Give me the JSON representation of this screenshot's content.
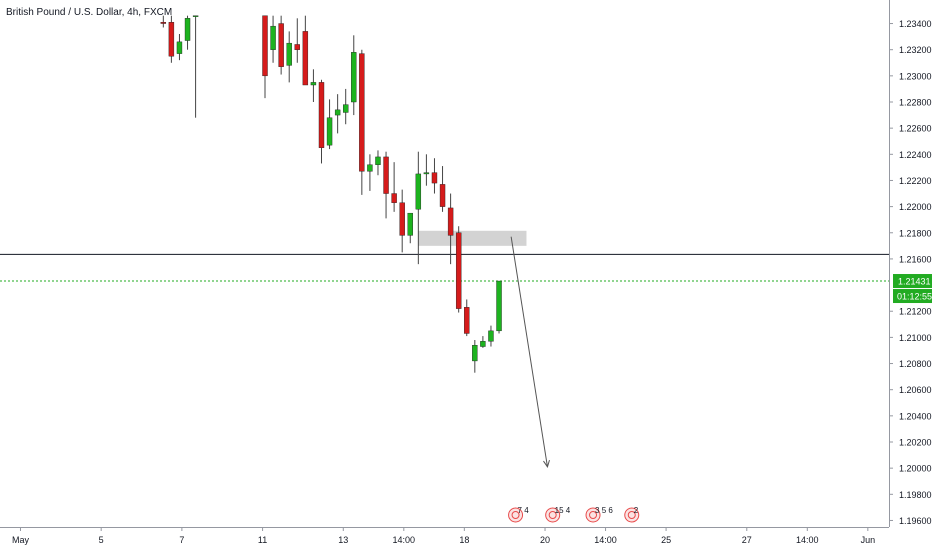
{
  "header": {
    "title": "British Pound / U.S. Dollar, 4h, FXCM"
  },
  "colors": {
    "up": "#1db31f",
    "down": "#d51b1b",
    "wick": "#444444",
    "axis_line": "#9598a1",
    "text": "#131722",
    "last_price": "#22ab22",
    "zone": "#d3d3d3",
    "hline": "#131722",
    "arrow": "#555555",
    "event": "#e84a4a"
  },
  "chart_data": {
    "type": "candlestick",
    "title": "British Pound / U.S. Dollar, 4h, FXCM",
    "symbol": "GBPUSD",
    "timeframe": "4h",
    "y_ticks": [
      "1.23400",
      "1.23200",
      "1.23000",
      "1.22800",
      "1.22600",
      "1.22400",
      "1.22200",
      "1.22000",
      "1.21800",
      "1.21600",
      "1.21200",
      "1.21000",
      "1.20800",
      "1.20600",
      "1.20400",
      "1.20200",
      "1.20000",
      "1.19800",
      "1.19600"
    ],
    "ylim": [
      1.1955,
      1.2358
    ],
    "x_ticks": [
      {
        "label": "May",
        "i": -30.3
      },
      {
        "label": "5",
        "i": -20.3
      },
      {
        "label": "7",
        "i": -10.3
      },
      {
        "label": "11",
        "i": -0.3
      },
      {
        "label": "13",
        "i": 9.7
      },
      {
        "label": "14:00",
        "i": 17.2
      },
      {
        "label": "18",
        "i": 24.7
      },
      {
        "label": "20",
        "i": 34.7
      },
      {
        "label": "14:00",
        "i": 42.2
      },
      {
        "label": "25",
        "i": 49.7
      },
      {
        "label": "27",
        "i": 59.7
      },
      {
        "label": "14:00",
        "i": 67.2
      },
      {
        "label": "Jun",
        "i": 74.7
      }
    ],
    "candles_early": [
      {
        "i": -12.6,
        "o": 1.2341,
        "h": 1.2346,
        "l": 1.2337,
        "c": 1.234
      },
      {
        "i": -11.6,
        "o": 1.2341,
        "h": 1.2346,
        "l": 1.231,
        "c": 1.2315
      },
      {
        "i": -10.6,
        "o": 1.2317,
        "h": 1.2332,
        "l": 1.2312,
        "c": 1.2326
      },
      {
        "i": -9.6,
        "o": 1.2327,
        "h": 1.2346,
        "l": 1.232,
        "c": 1.2344
      },
      {
        "i": -8.6,
        "o": 1.2346,
        "h": 1.2346,
        "l": 1.2268,
        "c": 1.2346
      }
    ],
    "candles": [
      {
        "i": 0,
        "o": 1.2346,
        "h": 1.2346,
        "l": 1.2283,
        "c": 1.23
      },
      {
        "i": 1,
        "o": 1.232,
        "h": 1.2346,
        "l": 1.231,
        "c": 1.2338
      },
      {
        "i": 2,
        "o": 1.234,
        "h": 1.2346,
        "l": 1.2301,
        "c": 1.2307
      },
      {
        "i": 3,
        "o": 1.2308,
        "h": 1.2334,
        "l": 1.2295,
        "c": 1.2325
      },
      {
        "i": 4,
        "o": 1.2324,
        "h": 1.2344,
        "l": 1.231,
        "c": 1.232
      },
      {
        "i": 5,
        "o": 1.2334,
        "h": 1.2346,
        "l": 1.2295,
        "c": 1.2293
      },
      {
        "i": 6,
        "o": 1.2293,
        "h": 1.2305,
        "l": 1.228,
        "c": 1.2295
      },
      {
        "i": 7,
        "o": 1.2295,
        "h": 1.2297,
        "l": 1.2233,
        "c": 1.2245
      },
      {
        "i": 8,
        "o": 1.2247,
        "h": 1.2282,
        "l": 1.2244,
        "c": 1.2268
      },
      {
        "i": 9,
        "o": 1.227,
        "h": 1.2286,
        "l": 1.2256,
        "c": 1.2274
      },
      {
        "i": 10,
        "o": 1.2272,
        "h": 1.229,
        "l": 1.2263,
        "c": 1.2278
      },
      {
        "i": 11,
        "o": 1.228,
        "h": 1.2331,
        "l": 1.227,
        "c": 1.2318
      },
      {
        "i": 12,
        "o": 1.2317,
        "h": 1.232,
        "l": 1.2209,
        "c": 1.2227
      },
      {
        "i": 13,
        "o": 1.2227,
        "h": 1.224,
        "l": 1.2212,
        "c": 1.2232
      },
      {
        "i": 14,
        "o": 1.2232,
        "h": 1.2243,
        "l": 1.2224,
        "c": 1.2238
      },
      {
        "i": 15,
        "o": 1.2238,
        "h": 1.2242,
        "l": 1.2191,
        "c": 1.221
      },
      {
        "i": 16,
        "o": 1.221,
        "h": 1.2234,
        "l": 1.2196,
        "c": 1.2203
      },
      {
        "i": 17,
        "o": 1.2203,
        "h": 1.2213,
        "l": 1.2165,
        "c": 1.2178
      },
      {
        "i": 18,
        "o": 1.2178,
        "h": 1.2193,
        "l": 1.2172,
        "c": 1.2195
      },
      {
        "i": 19,
        "o": 1.2198,
        "h": 1.2242,
        "l": 1.2156,
        "c": 1.2225
      },
      {
        "i": 20,
        "o": 1.2225,
        "h": 1.224,
        "l": 1.2216,
        "c": 1.2226
      },
      {
        "i": 21,
        "o": 1.2226,
        "h": 1.2237,
        "l": 1.221,
        "c": 1.2218
      },
      {
        "i": 22,
        "o": 1.2217,
        "h": 1.2231,
        "l": 1.2196,
        "c": 1.22
      },
      {
        "i": 23,
        "o": 1.2199,
        "h": 1.221,
        "l": 1.2156,
        "c": 1.2178
      },
      {
        "i": 24,
        "o": 1.218,
        "h": 1.2185,
        "l": 1.2119,
        "c": 1.2122
      },
      {
        "i": 25,
        "o": 1.2123,
        "h": 1.2129,
        "l": 1.2101,
        "c": 1.2103
      },
      {
        "i": 26,
        "o": 1.2082,
        "h": 1.2098,
        "l": 1.2073,
        "c": 1.2094
      },
      {
        "i": 27,
        "o": 1.2093,
        "h": 1.2101,
        "l": 1.2092,
        "c": 1.2097
      },
      {
        "i": 28,
        "o": 1.2097,
        "h": 1.2109,
        "l": 1.2093,
        "c": 1.2105
      },
      {
        "i": 29,
        "o": 1.2105,
        "h": 1.21431,
        "l": 1.2103,
        "c": 1.21431
      }
    ],
    "horizontal_line": 1.21635,
    "last_price": 1.21431,
    "price_label": "1.21431",
    "countdown": "01:12:55",
    "zone": {
      "i_start": 19,
      "i_end": 32.4,
      "top": 1.21815,
      "bottom": 1.217
    },
    "arrow": {
      "from": {
        "i": 30.5,
        "y": 1.2177
      },
      "to": {
        "i": 35.0,
        "y": 1.2001
      }
    },
    "events": [
      {
        "i": 30.8,
        "label": "7 4"
      },
      {
        "i": 35.4,
        "label": "15 4"
      },
      {
        "i": 40.4,
        "label": "3 5 6"
      },
      {
        "i": 45.2,
        "label": "2"
      }
    ]
  }
}
